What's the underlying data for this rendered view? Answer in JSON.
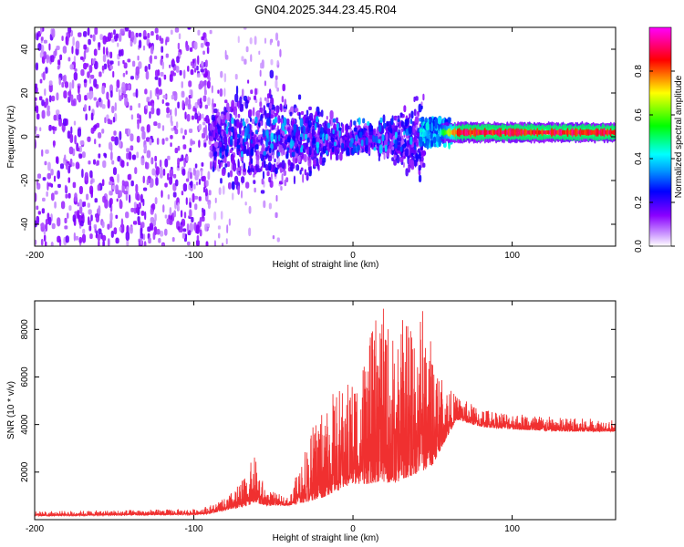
{
  "figure": {
    "title": "GN04.2025.344.23.45.R04"
  },
  "chart_data": [
    {
      "type": "heatmap",
      "xlabel": "Height of straight line (km)",
      "ylabel": "Frequency (Hz)",
      "xlim": [
        -200,
        165
      ],
      "ylim": [
        -50,
        50
      ],
      "x_ticks": [
        -200,
        -100,
        0,
        100
      ],
      "y_ticks": [
        -40,
        -20,
        0,
        20,
        40
      ],
      "colorbar": {
        "label": "Normalized spectral amplitude",
        "range": [
          0.0,
          1.0
        ],
        "ticks": [
          0.0,
          0.2,
          0.4,
          0.6,
          0.8
        ],
        "colormap": [
          "#ffffff",
          "#8a00ff",
          "#0000ff",
          "#00ffff",
          "#00ff00",
          "#ffff00",
          "#ff0000",
          "#ff00ff"
        ]
      },
      "regions": [
        {
          "x": [
            -200,
            -90
          ],
          "freq_band": [
            -50,
            50
          ],
          "amplitude": 0.1,
          "description_level": "scattered low"
        },
        {
          "x": [
            -90,
            45
          ],
          "freq_band": [
            -25,
            20
          ],
          "amplitude": 0.2
        },
        {
          "x": [
            45,
            60
          ],
          "freq_band": [
            -5,
            8
          ],
          "amplitude": 0.35
        },
        {
          "x": [
            60,
            165
          ],
          "freq_band": [
            0,
            4
          ],
          "center_freq": 2,
          "amplitude": 0.85
        }
      ],
      "grid": false,
      "legend": "colorbar-right"
    },
    {
      "type": "line",
      "xlabel": "Height of straight line (km)",
      "ylabel": "SNR (10 * v/v)",
      "xlim": [
        -200,
        165
      ],
      "ylim": [
        0,
        9200
      ],
      "x_ticks": [
        -200,
        -100,
        0,
        100
      ],
      "y_ticks": [
        2000,
        4000,
        6000,
        8000
      ],
      "color": "#f03030",
      "envelope": [
        {
          "x": -200,
          "baseline": 150,
          "max": 350
        },
        {
          "x": -100,
          "baseline": 200,
          "max": 450
        },
        {
          "x": -90,
          "baseline": 250,
          "max": 600
        },
        {
          "x": -80,
          "baseline": 400,
          "max": 900
        },
        {
          "x": -70,
          "baseline": 500,
          "max": 1600
        },
        {
          "x": -62,
          "baseline": 700,
          "max": 2700
        },
        {
          "x": -55,
          "baseline": 600,
          "max": 1300
        },
        {
          "x": -40,
          "baseline": 600,
          "max": 900
        },
        {
          "x": -32,
          "baseline": 700,
          "max": 2700
        },
        {
          "x": -20,
          "baseline": 900,
          "max": 5000
        },
        {
          "x": -10,
          "baseline": 1200,
          "max": 5500
        },
        {
          "x": 0,
          "baseline": 1500,
          "max": 6000
        },
        {
          "x": 10,
          "baseline": 1500,
          "max": 7500
        },
        {
          "x": 17,
          "baseline": 1600,
          "max": 9200
        },
        {
          "x": 25,
          "baseline": 1500,
          "max": 8000
        },
        {
          "x": 35,
          "baseline": 1800,
          "max": 8800
        },
        {
          "x": 43,
          "baseline": 2000,
          "max": 9200
        },
        {
          "x": 50,
          "baseline": 2300,
          "max": 7500
        },
        {
          "x": 57,
          "baseline": 3200,
          "max": 5800
        },
        {
          "x": 65,
          "baseline": 4200,
          "max": 5200
        },
        {
          "x": 80,
          "baseline": 3900,
          "max": 4700
        },
        {
          "x": 100,
          "baseline": 3800,
          "max": 4500
        },
        {
          "x": 130,
          "baseline": 3700,
          "max": 4300
        },
        {
          "x": 165,
          "baseline": 3700,
          "max": 4200
        }
      ],
      "grid": false
    }
  ]
}
